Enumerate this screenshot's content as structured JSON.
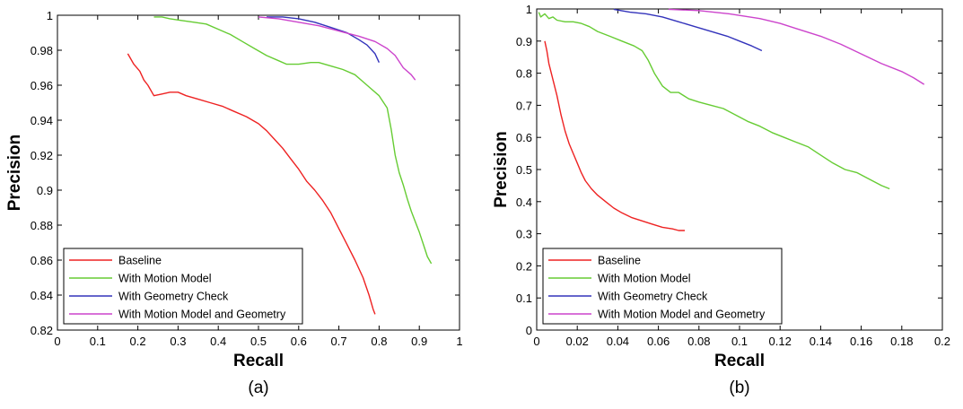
{
  "chart_data": [
    {
      "type": "line",
      "caption": "(a)",
      "xlabel": "Recall",
      "ylabel": "Precision",
      "xlim": [
        0,
        1
      ],
      "ylim": [
        0.82,
        1
      ],
      "xticks": [
        0,
        0.1,
        0.2,
        0.3,
        0.4,
        0.5,
        0.6,
        0.7,
        0.8,
        0.9,
        1
      ],
      "xtick_labels": [
        "0",
        "0.1",
        "0.2",
        "0.3",
        "0.4",
        "0.5",
        "0.6",
        "0.7",
        "0.8",
        "0.9",
        "1"
      ],
      "yticks": [
        0.82,
        0.84,
        0.86,
        0.88,
        0.9,
        0.92,
        0.94,
        0.96,
        0.98,
        1
      ],
      "ytick_labels": [
        "0.82",
        "0.84",
        "0.86",
        "0.88",
        "0.9",
        "0.92",
        "0.94",
        "0.96",
        "0.98",
        "1"
      ],
      "grid": false,
      "legend_position": "bottom-left",
      "series": [
        {
          "name": "Baseline",
          "color": "#ee2222",
          "points": [
            [
              0.175,
              0.978
            ],
            [
              0.19,
              0.972
            ],
            [
              0.205,
              0.968
            ],
            [
              0.215,
              0.963
            ],
            [
              0.225,
              0.96
            ],
            [
              0.24,
              0.954
            ],
            [
              0.26,
              0.955
            ],
            [
              0.28,
              0.956
            ],
            [
              0.3,
              0.956
            ],
            [
              0.32,
              0.954
            ],
            [
              0.35,
              0.952
            ],
            [
              0.38,
              0.95
            ],
            [
              0.41,
              0.948
            ],
            [
              0.44,
              0.945
            ],
            [
              0.47,
              0.942
            ],
            [
              0.5,
              0.938
            ],
            [
              0.52,
              0.934
            ],
            [
              0.54,
              0.929
            ],
            [
              0.56,
              0.924
            ],
            [
              0.58,
              0.918
            ],
            [
              0.6,
              0.912
            ],
            [
              0.62,
              0.905
            ],
            [
              0.64,
              0.9
            ],
            [
              0.66,
              0.894
            ],
            [
              0.68,
              0.887
            ],
            [
              0.7,
              0.878
            ],
            [
              0.72,
              0.869
            ],
            [
              0.74,
              0.86
            ],
            [
              0.76,
              0.85
            ],
            [
              0.775,
              0.84
            ],
            [
              0.785,
              0.832
            ],
            [
              0.79,
              0.829
            ]
          ]
        },
        {
          "name": "With Motion Model",
          "color": "#66cc33",
          "points": [
            [
              0.24,
              0.999
            ],
            [
              0.26,
              0.999
            ],
            [
              0.28,
              0.998
            ],
            [
              0.31,
              0.997
            ],
            [
              0.34,
              0.996
            ],
            [
              0.37,
              0.995
            ],
            [
              0.4,
              0.992
            ],
            [
              0.43,
              0.989
            ],
            [
              0.46,
              0.985
            ],
            [
              0.49,
              0.981
            ],
            [
              0.52,
              0.977
            ],
            [
              0.55,
              0.974
            ],
            [
              0.57,
              0.972
            ],
            [
              0.6,
              0.972
            ],
            [
              0.63,
              0.973
            ],
            [
              0.65,
              0.973
            ],
            [
              0.68,
              0.971
            ],
            [
              0.71,
              0.969
            ],
            [
              0.74,
              0.966
            ],
            [
              0.76,
              0.962
            ],
            [
              0.78,
              0.958
            ],
            [
              0.8,
              0.954
            ],
            [
              0.82,
              0.947
            ],
            [
              0.83,
              0.935
            ],
            [
              0.84,
              0.92
            ],
            [
              0.85,
              0.91
            ],
            [
              0.86,
              0.903
            ],
            [
              0.87,
              0.895
            ],
            [
              0.88,
              0.888
            ],
            [
              0.89,
              0.882
            ],
            [
              0.9,
              0.876
            ],
            [
              0.91,
              0.869
            ],
            [
              0.92,
              0.862
            ],
            [
              0.93,
              0.858
            ]
          ]
        },
        {
          "name": "With Geometry Check",
          "color": "#3333bb",
          "points": [
            [
              0.52,
              0.999
            ],
            [
              0.56,
              0.999
            ],
            [
              0.6,
              0.998
            ],
            [
              0.64,
              0.996
            ],
            [
              0.68,
              0.993
            ],
            [
              0.72,
              0.99
            ],
            [
              0.75,
              0.986
            ],
            [
              0.77,
              0.983
            ],
            [
              0.79,
              0.978
            ],
            [
              0.8,
              0.973
            ]
          ]
        },
        {
          "name": "With Motion Model and Geometry",
          "color": "#cc44cc",
          "points": [
            [
              0.5,
              0.999
            ],
            [
              0.55,
              0.998
            ],
            [
              0.6,
              0.996
            ],
            [
              0.65,
              0.994
            ],
            [
              0.7,
              0.991
            ],
            [
              0.75,
              0.988
            ],
            [
              0.79,
              0.985
            ],
            [
              0.82,
              0.981
            ],
            [
              0.84,
              0.977
            ],
            [
              0.86,
              0.97
            ],
            [
              0.88,
              0.966
            ],
            [
              0.89,
              0.963
            ]
          ]
        }
      ]
    },
    {
      "type": "line",
      "caption": "(b)",
      "xlabel": "Recall",
      "ylabel": "Precision",
      "xlim": [
        0,
        0.2
      ],
      "ylim": [
        0,
        1
      ],
      "xticks": [
        0,
        0.02,
        0.04,
        0.06,
        0.08,
        0.1,
        0.12,
        0.14,
        0.16,
        0.18,
        0.2
      ],
      "xtick_labels": [
        "0",
        "0.02",
        "0.04",
        "0.06",
        "0.08",
        "0.1",
        "0.12",
        "0.14",
        "0.16",
        "0.18",
        "0.2"
      ],
      "yticks": [
        0,
        0.1,
        0.2,
        0.3,
        0.4,
        0.5,
        0.6,
        0.7,
        0.8,
        0.9,
        1
      ],
      "ytick_labels": [
        "0",
        "0.1",
        "0.2",
        "0.3",
        "0.4",
        "0.5",
        "0.6",
        "0.7",
        "0.8",
        "0.9",
        "1"
      ],
      "grid": false,
      "legend_position": "bottom-left",
      "series": [
        {
          "name": "Baseline",
          "color": "#ee2222",
          "points": [
            [
              0.004,
              0.9
            ],
            [
              0.005,
              0.87
            ],
            [
              0.006,
              0.83
            ],
            [
              0.008,
              0.78
            ],
            [
              0.01,
              0.73
            ],
            [
              0.012,
              0.67
            ],
            [
              0.014,
              0.62
            ],
            [
              0.016,
              0.58
            ],
            [
              0.018,
              0.55
            ],
            [
              0.02,
              0.52
            ],
            [
              0.022,
              0.49
            ],
            [
              0.024,
              0.465
            ],
            [
              0.027,
              0.44
            ],
            [
              0.03,
              0.42
            ],
            [
              0.034,
              0.4
            ],
            [
              0.038,
              0.38
            ],
            [
              0.042,
              0.365
            ],
            [
              0.047,
              0.35
            ],
            [
              0.052,
              0.34
            ],
            [
              0.057,
              0.33
            ],
            [
              0.062,
              0.32
            ],
            [
              0.067,
              0.315
            ],
            [
              0.07,
              0.31
            ],
            [
              0.073,
              0.31
            ]
          ]
        },
        {
          "name": "With Motion Model",
          "color": "#66cc33",
          "points": [
            [
              0.001,
              0.99
            ],
            [
              0.002,
              0.975
            ],
            [
              0.004,
              0.985
            ],
            [
              0.006,
              0.97
            ],
            [
              0.008,
              0.975
            ],
            [
              0.01,
              0.965
            ],
            [
              0.014,
              0.96
            ],
            [
              0.018,
              0.96
            ],
            [
              0.022,
              0.955
            ],
            [
              0.026,
              0.945
            ],
            [
              0.03,
              0.93
            ],
            [
              0.036,
              0.915
            ],
            [
              0.042,
              0.9
            ],
            [
              0.048,
              0.885
            ],
            [
              0.052,
              0.87
            ],
            [
              0.055,
              0.84
            ],
            [
              0.058,
              0.8
            ],
            [
              0.062,
              0.76
            ],
            [
              0.066,
              0.74
            ],
            [
              0.07,
              0.74
            ],
            [
              0.075,
              0.72
            ],
            [
              0.08,
              0.71
            ],
            [
              0.086,
              0.7
            ],
            [
              0.092,
              0.69
            ],
            [
              0.098,
              0.67
            ],
            [
              0.104,
              0.65
            ],
            [
              0.11,
              0.635
            ],
            [
              0.116,
              0.615
            ],
            [
              0.122,
              0.6
            ],
            [
              0.128,
              0.585
            ],
            [
              0.134,
              0.57
            ],
            [
              0.14,
              0.545
            ],
            [
              0.146,
              0.52
            ],
            [
              0.152,
              0.5
            ],
            [
              0.158,
              0.49
            ],
            [
              0.164,
              0.47
            ],
            [
              0.17,
              0.45
            ],
            [
              0.174,
              0.44
            ]
          ]
        },
        {
          "name": "With Geometry Check",
          "color": "#3333bb",
          "points": [
            [
              0.038,
              0.999
            ],
            [
              0.046,
              0.99
            ],
            [
              0.054,
              0.985
            ],
            [
              0.062,
              0.975
            ],
            [
              0.07,
              0.96
            ],
            [
              0.078,
              0.945
            ],
            [
              0.086,
              0.93
            ],
            [
              0.094,
              0.915
            ],
            [
              0.1,
              0.9
            ],
            [
              0.106,
              0.885
            ],
            [
              0.111,
              0.87
            ]
          ]
        },
        {
          "name": "With Motion Model and Geometry",
          "color": "#cc44cc",
          "points": [
            [
              0.065,
              0.999
            ],
            [
              0.08,
              0.995
            ],
            [
              0.095,
              0.985
            ],
            [
              0.11,
              0.97
            ],
            [
              0.12,
              0.955
            ],
            [
              0.13,
              0.935
            ],
            [
              0.14,
              0.915
            ],
            [
              0.15,
              0.89
            ],
            [
              0.16,
              0.86
            ],
            [
              0.17,
              0.83
            ],
            [
              0.18,
              0.805
            ],
            [
              0.186,
              0.785
            ],
            [
              0.191,
              0.765
            ]
          ]
        }
      ]
    }
  ]
}
